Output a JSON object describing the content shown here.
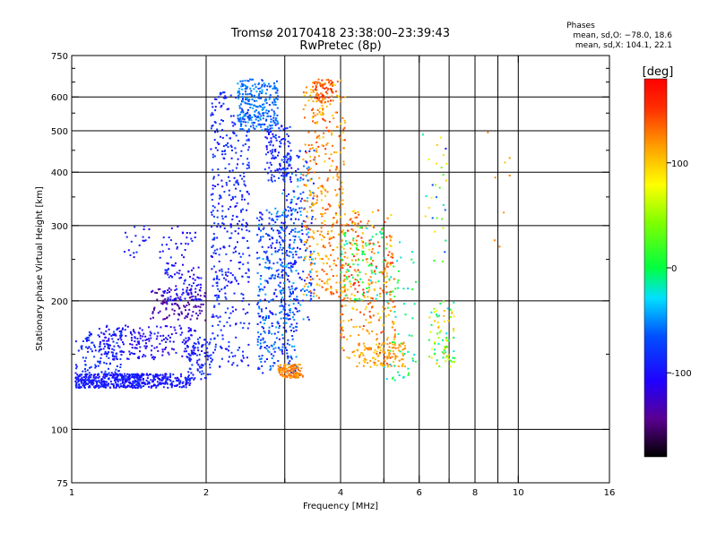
{
  "chart_data": {
    "type": "scatter",
    "title": "Tromsø 20170418 23:38:00–23:39:43",
    "subtitle": "RwPretec (8p)",
    "xlabel": "Frequency [MHz]",
    "ylabel": "Stationary phase Virtual Height [km]",
    "x_scale": "log",
    "y_scale": "log",
    "xlim": [
      1,
      16
    ],
    "ylim": [
      75,
      750
    ],
    "x_ticks": [
      1,
      2,
      4,
      6,
      8,
      10,
      16
    ],
    "x_tick_labels": [
      "1",
      "2",
      "4",
      "6",
      "8",
      "10",
      "16"
    ],
    "x_minor_ticks": [
      3,
      5,
      7,
      9
    ],
    "y_ticks": [
      75,
      100,
      200,
      300,
      400,
      500,
      600,
      750
    ],
    "y_tick_labels": [
      "75",
      "100",
      "200",
      "300",
      "400",
      "500",
      "600",
      "750"
    ],
    "y_minor_ticks": [
      150,
      250,
      350,
      450,
      550,
      650,
      700
    ],
    "grid": true,
    "legend": {
      "title": "Phases",
      "lines": [
        "mean, sd,O: −78.0, 18.6",
        "mean, sd,X: 104.1, 22.1"
      ]
    },
    "colorbar": {
      "label": "[deg]",
      "range": [
        -180,
        180
      ],
      "ticks": [
        100,
        0,
        -100
      ],
      "tick_labels": [
        "100",
        "0",
        "-100"
      ]
    },
    "series": [
      {
        "clusters": [
          {
            "f": [
              1.02,
              1.45
            ],
            "h": [
              125,
              135
            ],
            "phase": [
              -110,
              -80
            ],
            "n": 380
          },
          {
            "f": [
              1.02,
              1.3
            ],
            "h": [
              135,
              170
            ],
            "phase": [
              -100,
              -70
            ],
            "n": 120
          },
          {
            "f": [
              1.15,
              1.9
            ],
            "h": [
              145,
              175
            ],
            "phase": [
              -120,
              -90
            ],
            "n": 200
          },
          {
            "f": [
              1.4,
              1.85
            ],
            "h": [
              125,
              135
            ],
            "phase": [
              -110,
              -80
            ],
            "n": 160
          },
          {
            "f": [
              1.5,
              2.0
            ],
            "h": [
              180,
              215
            ],
            "phase": [
              -150,
              -120
            ],
            "n": 110
          },
          {
            "f": [
              1.6,
              1.95
            ],
            "h": [
              200,
              245
            ],
            "phase": [
              -120,
              -80
            ],
            "n": 90
          },
          {
            "f": [
              1.8,
              2.05
            ],
            "h": [
              130,
              165
            ],
            "phase": [
              -110,
              -70
            ],
            "n": 90
          },
          {
            "f": [
              1.3,
              1.9
            ],
            "h": [
              250,
              300
            ],
            "phase": [
              -110,
              -80
            ],
            "n": 50
          },
          {
            "f": [
              2.05,
              2.5
            ],
            "h": [
              140,
              620
            ],
            "phase": [
              -105,
              -70
            ],
            "n": 420
          },
          {
            "f": [
              2.35,
              2.9
            ],
            "h": [
              500,
              660
            ],
            "phase": [
              -75,
              -40
            ],
            "n": 260
          },
          {
            "f": [
              2.6,
              3.2
            ],
            "h": [
              135,
              330
            ],
            "phase": [
              -110,
              -40
            ],
            "n": 420
          },
          {
            "f": [
              2.7,
              3.1
            ],
            "h": [
              380,
              520
            ],
            "phase": [
              -110,
              -70
            ],
            "n": 120
          },
          {
            "f": [
              2.95,
              3.5
            ],
            "h": [
              180,
              450
            ],
            "phase": [
              -110,
              -30
            ],
            "n": 220
          },
          {
            "f": [
              2.9,
              3.3
            ],
            "h": [
              132,
              142
            ],
            "phase": [
              110,
              140
            ],
            "n": 110
          },
          {
            "f": [
              3.3,
              4.1
            ],
            "h": [
              200,
              660
            ],
            "phase": [
              90,
              150
            ],
            "n": 380
          },
          {
            "f": [
              3.45,
              3.85
            ],
            "h": [
              580,
              660
            ],
            "phase": [
              120,
              160
            ],
            "n": 60
          },
          {
            "f": [
              4.0,
              5.3
            ],
            "h": [
              140,
              330
            ],
            "phase": [
              90,
              160
            ],
            "n": 320
          },
          {
            "f": [
              4.0,
              5.0
            ],
            "h": [
              200,
              300
            ],
            "phase": [
              -30,
              20
            ],
            "n": 80
          },
          {
            "f": [
              4.4,
              5.6
            ],
            "h": [
              140,
              160
            ],
            "phase": [
              100,
              130
            ],
            "n": 90
          },
          {
            "f": [
              5.0,
              5.9
            ],
            "h": [
              130,
              280
            ],
            "phase": [
              -40,
              20
            ],
            "n": 60
          },
          {
            "f": [
              6.3,
              7.2
            ],
            "h": [
              140,
              200
            ],
            "phase": [
              -30,
              120
            ],
            "n": 80
          },
          {
            "f": [
              6.1,
              7.0
            ],
            "h": [
              240,
              500
            ],
            "phase": [
              -100,
              100
            ],
            "n": 30
          },
          {
            "f": [
              8.5,
              10.2
            ],
            "h": [
              180,
              500
            ],
            "phase": [
              100,
              130
            ],
            "n": 8
          }
        ]
      }
    ]
  }
}
